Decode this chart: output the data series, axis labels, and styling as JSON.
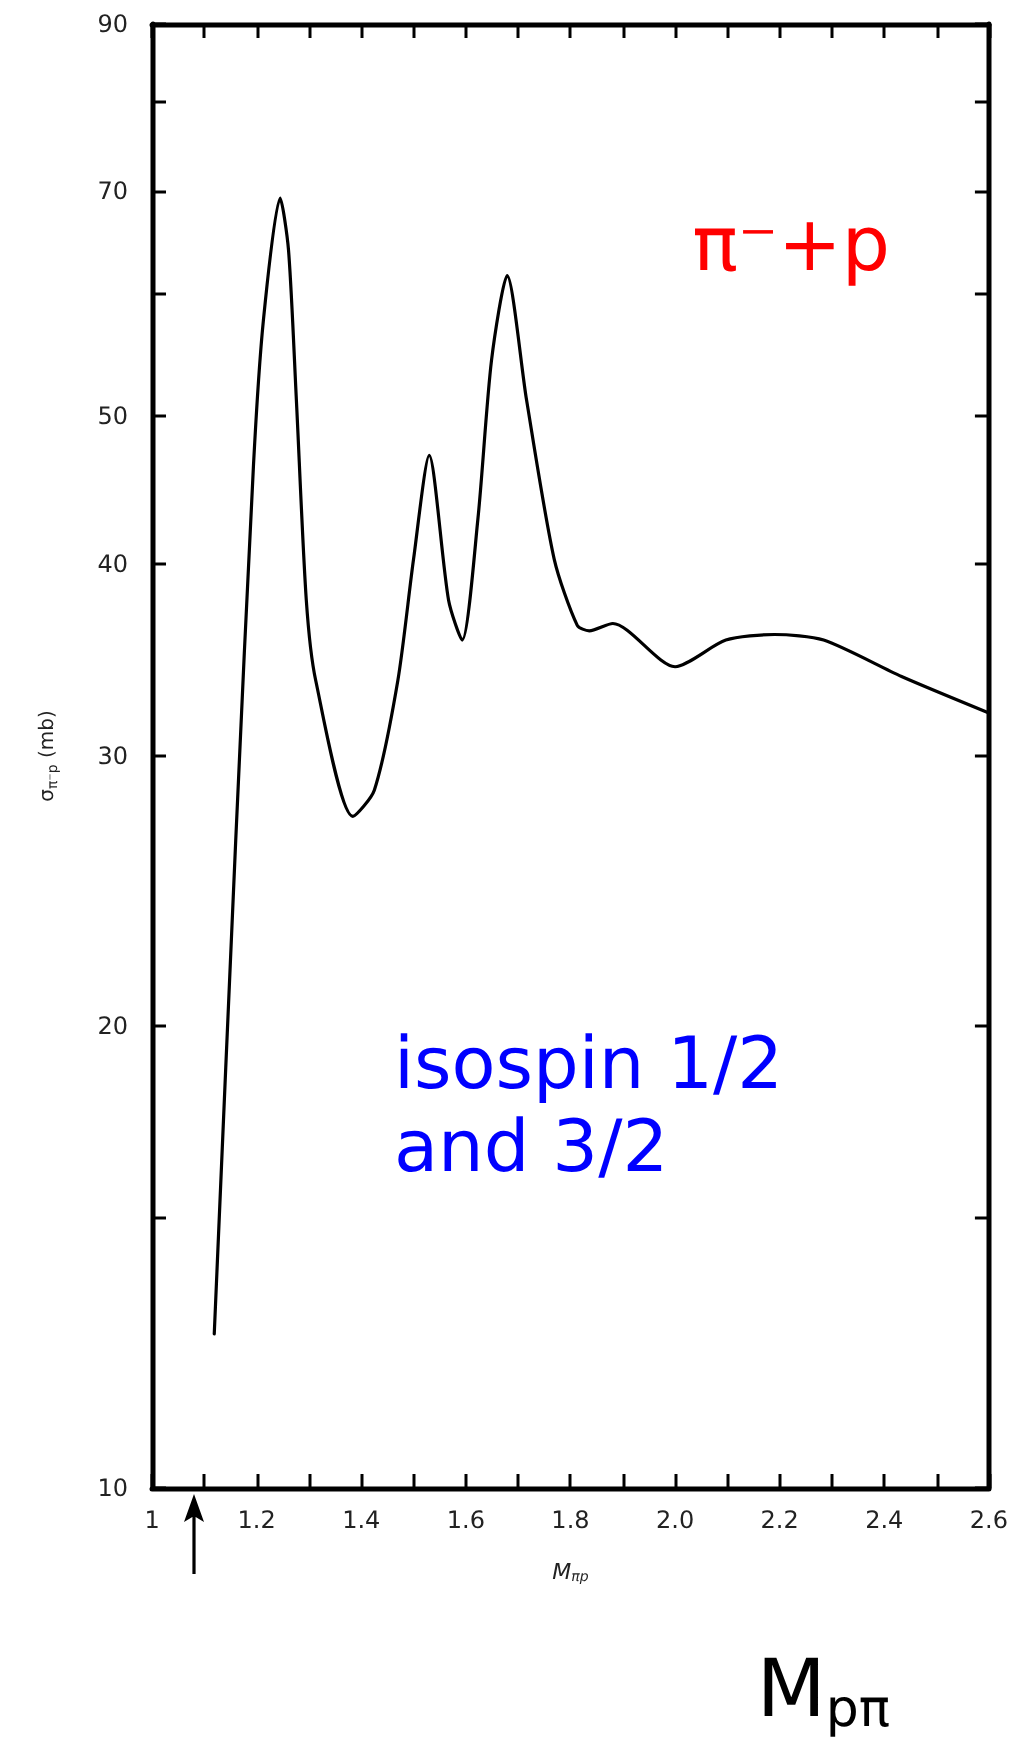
{
  "chart_data": {
    "type": "line",
    "xlabel": "M$_{πp}$",
    "ylabel": "σ$_{π⁻p}$ (mb)",
    "annotations": [
      "π⁻+p",
      "isospin 1/2 and 3/2",
      "M$_{pπ}$"
    ],
    "log": "y",
    "grid": false,
    "marker": "none",
    "line_style": "solid",
    "xlim": [
      1,
      2.6
    ],
    "ylim": [
      10,
      90
    ],
    "xticks": [
      1,
      {
        "value": 1.1,
        "label": null
      },
      1.2,
      {
        "value": 1.3,
        "label": null
      },
      1.4,
      {
        "value": 1.5,
        "label": null
      },
      1.6,
      {
        "value": 1.7,
        "label": null
      },
      1.8,
      {
        "value": 1.9,
        "label": null
      },
      {
        "value": 2,
        "label": "2.0"
      },
      {
        "value": 2.1,
        "label": null
      },
      2.2,
      {
        "value": 2.3,
        "label": null
      },
      2.4,
      {
        "value": 2.5,
        "label": null
      },
      2.6
    ],
    "yticks": [
      10,
      {
        "value": 15,
        "label": null
      },
      20,
      30,
      40,
      50,
      {
        "value": 60,
        "label": null
      },
      70,
      {
        "value": 80,
        "label": null
      },
      90
    ],
    "series": [
      {
        "color": "#000000",
        "x": [
          1.119,
          1.16,
          1.194,
          1.213,
          1.245,
          1.261,
          1.276,
          1.295,
          1.313,
          1.384,
          1.425,
          1.47,
          1.5,
          1.53,
          1.567,
          1.593,
          1.623,
          1.649,
          1.679,
          1.716,
          1.769,
          1.813,
          1.836,
          1.881,
          2.0,
          2.097,
          2.19,
          2.284,
          2.433,
          2.6
        ],
        "values": [
          12.6,
          26.4,
          46.4,
          57.7,
          69.3,
          64.1,
          51.2,
          37.9,
          33.6,
          27.4,
          28.5,
          33.6,
          40.3,
          47.1,
          37.9,
          35.7,
          42.8,
          54.3,
          61.7,
          51.2,
          40.3,
          36.5,
          36.2,
          36.6,
          34.3,
          35.7,
          36.0,
          35.7,
          33.8,
          32.0
        ]
      }
    ]
  }
}
